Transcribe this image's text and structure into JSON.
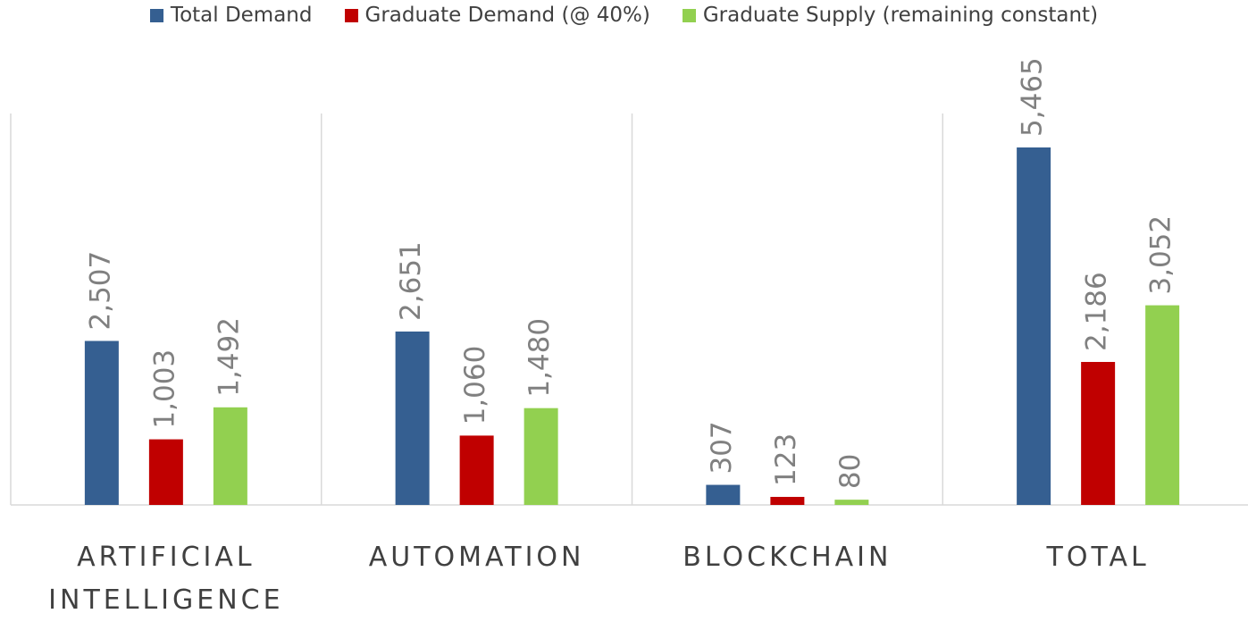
{
  "chart_data": {
    "type": "bar",
    "categories": [
      "ARTIFICIAL INTELLIGENCE",
      "AUTOMATION",
      "BLOCKCHAIN",
      "TOTAL"
    ],
    "series": [
      {
        "name": "Total Demand",
        "color": "#355f91",
        "values": [
          2507,
          2651,
          307,
          5465
        ],
        "value_labels": [
          "2,507",
          "2,651",
          "307",
          "5,465"
        ]
      },
      {
        "name": "Graduate Demand (@ 40%)",
        "color": "#c00000",
        "values": [
          1003,
          1060,
          123,
          2186
        ],
        "value_labels": [
          "1,003",
          "1,060",
          "123",
          "2,186"
        ]
      },
      {
        "name": "Graduate Supply (remaining constant)",
        "color": "#92d050",
        "values": [
          1492,
          1480,
          80,
          3052
        ],
        "value_labels": [
          "1,492",
          "1,480",
          "80",
          "3,052"
        ]
      }
    ]
  }
}
